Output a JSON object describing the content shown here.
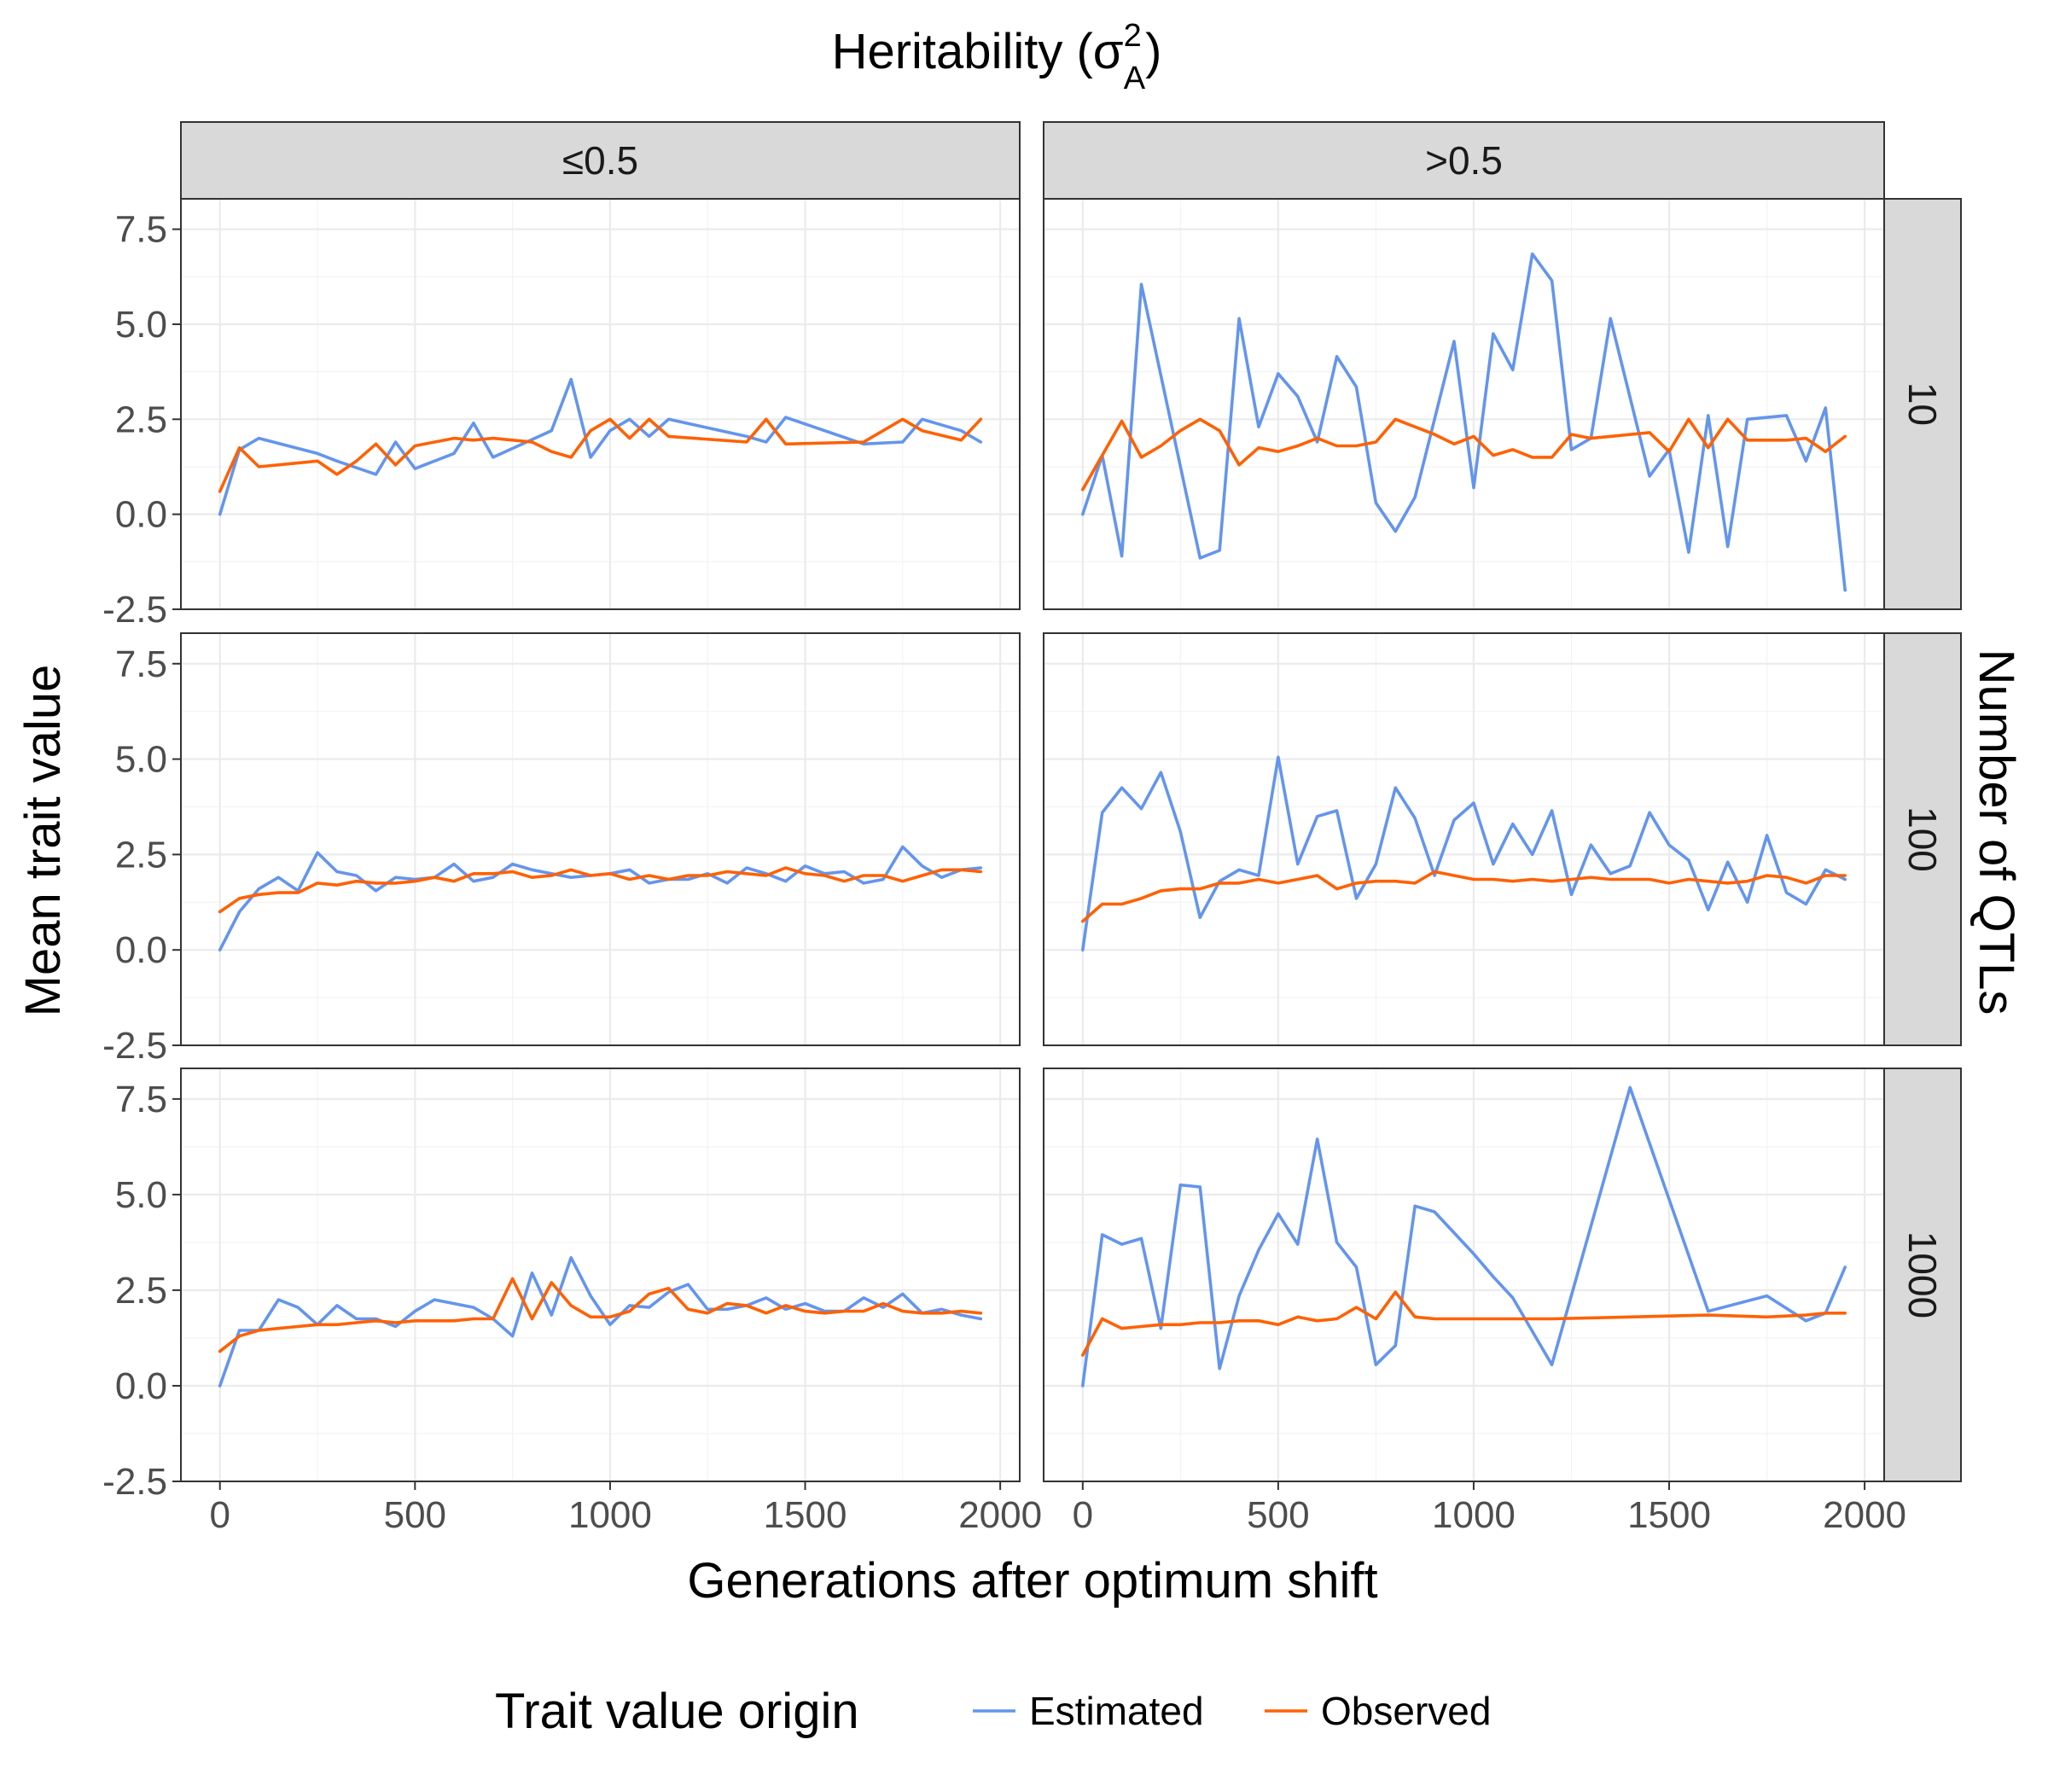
{
  "chart_data": {
    "type": "line",
    "title": "Heritability (σ²A)",
    "title_parts": {
      "base": "Heritability (σ",
      "sup": "2",
      "sub": "A",
      "close": ")"
    },
    "xlabel": "Generations after optimum shift",
    "ylabel": "Mean trait value",
    "facet_row_label": "Number of QTLs",
    "facet_cols": [
      "≤0.5",
      ">0.5"
    ],
    "facet_rows": [
      "10",
      "100",
      "1000"
    ],
    "xlim": [
      -100,
      2050
    ],
    "ylim": [
      -2.5,
      8.3
    ],
    "xticks": [
      0,
      500,
      1000,
      1500,
      2000
    ],
    "yticks": [
      -2.5,
      0.0,
      2.5,
      5.0,
      7.5
    ],
    "xtick_labels": [
      "0",
      "500",
      "1000",
      "1500",
      "2000"
    ],
    "ytick_labels": [
      "-2.5",
      "0.0",
      "2.5",
      "5.0",
      "7.5"
    ],
    "grid": true,
    "legend": {
      "title": "Trait value origin",
      "position": "bottom",
      "entries": [
        {
          "name": "Estimated",
          "color": "#6495ED"
        },
        {
          "name": "Observed",
          "color": "#FF6103"
        }
      ]
    },
    "panels": [
      {
        "col": "≤0.5",
        "row": "10",
        "series": [
          {
            "name": "Estimated",
            "x": [
              0,
              50,
              100,
              250,
              300,
              400,
              450,
              500,
              600,
              650,
              700,
              850,
              900,
              950,
              1000,
              1050,
              1100,
              1150,
              1350,
              1400,
              1450,
              1650,
              1750,
              1800,
              1900,
              1950
            ],
            "y": [
              0.0,
              1.7,
              2.0,
              1.6,
              1.4,
              1.05,
              1.9,
              1.2,
              1.6,
              2.4,
              1.5,
              2.2,
              3.55,
              1.5,
              2.2,
              2.5,
              2.05,
              2.5,
              2.05,
              1.9,
              2.55,
              1.85,
              1.9,
              2.5,
              2.2,
              1.9
            ]
          },
          {
            "name": "Observed",
            "x": [
              0,
              50,
              100,
              250,
              300,
              350,
              400,
              450,
              500,
              600,
              650,
              700,
              800,
              850,
              900,
              950,
              1000,
              1050,
              1100,
              1150,
              1350,
              1400,
              1450,
              1650,
              1750,
              1800,
              1900,
              1950
            ],
            "y": [
              0.6,
              1.75,
              1.25,
              1.4,
              1.05,
              1.4,
              1.85,
              1.3,
              1.8,
              2.0,
              1.95,
              2.0,
              1.9,
              1.65,
              1.5,
              2.2,
              2.5,
              2.0,
              2.5,
              2.05,
              1.9,
              2.5,
              1.85,
              1.9,
              2.5,
              2.2,
              1.95,
              2.5
            ]
          }
        ]
      },
      {
        "col": ">0.5",
        "row": "10",
        "series": [
          {
            "name": "Estimated",
            "x": [
              0,
              50,
              100,
              150,
              300,
              350,
              400,
              450,
              500,
              550,
              600,
              650,
              700,
              750,
              800,
              850,
              950,
              1000,
              1050,
              1100,
              1150,
              1200,
              1250,
              1300,
              1350,
              1450,
              1500,
              1550,
              1600,
              1650,
              1700,
              1800,
              1850,
              1900,
              1950
            ],
            "y": [
              0.0,
              1.55,
              -1.1,
              6.05,
              -1.15,
              -0.95,
              5.15,
              2.3,
              3.7,
              3.1,
              1.9,
              4.15,
              3.35,
              0.3,
              -0.45,
              0.45,
              4.55,
              0.7,
              4.75,
              3.8,
              6.85,
              6.15,
              1.7,
              2.0,
              5.15,
              1.0,
              1.7,
              -1.0,
              2.6,
              -0.85,
              2.5,
              2.6,
              1.4,
              2.8,
              -2.0
            ]
          },
          {
            "name": "Observed",
            "x": [
              0,
              100,
              150,
              200,
              250,
              300,
              350,
              400,
              450,
              500,
              550,
              600,
              650,
              700,
              750,
              800,
              850,
              900,
              950,
              1000,
              1050,
              1100,
              1150,
              1200,
              1250,
              1300,
              1350,
              1450,
              1500,
              1550,
              1600,
              1650,
              1700,
              1800,
              1850,
              1900,
              1950
            ],
            "y": [
              0.65,
              2.45,
              1.5,
              1.8,
              2.2,
              2.5,
              2.2,
              1.3,
              1.75,
              1.65,
              1.8,
              2.0,
              1.8,
              1.8,
              1.9,
              2.5,
              2.3,
              2.1,
              1.85,
              2.05,
              1.55,
              1.7,
              1.5,
              1.5,
              2.1,
              2.0,
              2.05,
              2.15,
              1.65,
              2.5,
              1.75,
              2.5,
              1.95,
              1.95,
              2.0,
              1.65,
              2.05
            ]
          }
        ]
      },
      {
        "col": "≤0.5",
        "row": "100",
        "series": [
          {
            "name": "Estimated",
            "x": [
              0,
              50,
              100,
              150,
              200,
              250,
              300,
              350,
              400,
              450,
              500,
              550,
              600,
              650,
              700,
              750,
              800,
              850,
              900,
              950,
              1000,
              1050,
              1100,
              1150,
              1200,
              1250,
              1300,
              1350,
              1400,
              1450,
              1500,
              1550,
              1600,
              1650,
              1700,
              1750,
              1800,
              1850,
              1900,
              1950
            ],
            "y": [
              0.0,
              1.0,
              1.6,
              1.9,
              1.55,
              2.55,
              2.05,
              1.95,
              1.55,
              1.9,
              1.85,
              1.9,
              2.25,
              1.8,
              1.9,
              2.25,
              2.1,
              2.0,
              1.9,
              1.95,
              2.0,
              2.1,
              1.75,
              1.85,
              1.85,
              2.0,
              1.75,
              2.15,
              2.0,
              1.8,
              2.2,
              2.0,
              2.05,
              1.75,
              1.85,
              2.7,
              2.2,
              1.9,
              2.1,
              2.15
            ]
          },
          {
            "name": "Observed",
            "x": [
              0,
              50,
              100,
              150,
              200,
              250,
              300,
              350,
              400,
              450,
              500,
              550,
              600,
              650,
              700,
              750,
              800,
              850,
              900,
              950,
              1000,
              1050,
              1100,
              1150,
              1200,
              1250,
              1300,
              1350,
              1400,
              1450,
              1500,
              1550,
              1600,
              1650,
              1700,
              1750,
              1800,
              1850,
              1900,
              1950
            ],
            "y": [
              1.0,
              1.35,
              1.45,
              1.5,
              1.5,
              1.75,
              1.7,
              1.8,
              1.75,
              1.75,
              1.8,
              1.9,
              1.8,
              2.0,
              2.0,
              2.05,
              1.9,
              1.95,
              2.1,
              1.95,
              2.0,
              1.85,
              1.95,
              1.85,
              1.95,
              1.95,
              2.05,
              2.0,
              1.95,
              2.15,
              2.0,
              1.95,
              1.8,
              1.95,
              1.95,
              1.8,
              1.95,
              2.1,
              2.1,
              2.05
            ]
          }
        ]
      },
      {
        "col": ">0.5",
        "row": "100",
        "series": [
          {
            "name": "Estimated",
            "x": [
              0,
              50,
              100,
              150,
              200,
              250,
              300,
              350,
              400,
              450,
              500,
              550,
              600,
              650,
              700,
              750,
              800,
              850,
              900,
              950,
              1000,
              1050,
              1100,
              1150,
              1200,
              1250,
              1300,
              1350,
              1400,
              1450,
              1500,
              1550,
              1600,
              1650,
              1700,
              1750,
              1800,
              1850,
              1900,
              1950
            ],
            "y": [
              0.0,
              3.6,
              4.25,
              3.7,
              4.65,
              3.1,
              0.85,
              1.8,
              2.1,
              1.95,
              5.05,
              2.25,
              3.5,
              3.65,
              1.35,
              2.25,
              4.25,
              3.45,
              1.95,
              3.4,
              3.85,
              2.25,
              3.3,
              2.5,
              3.65,
              1.45,
              2.75,
              2.0,
              2.2,
              3.6,
              2.75,
              2.35,
              1.05,
              2.3,
              1.25,
              3.0,
              1.5,
              1.2,
              2.1,
              1.85
            ]
          },
          {
            "name": "Observed",
            "x": [
              0,
              50,
              100,
              150,
              200,
              250,
              300,
              350,
              400,
              450,
              500,
              550,
              600,
              650,
              700,
              750,
              800,
              850,
              900,
              950,
              1000,
              1050,
              1100,
              1150,
              1200,
              1250,
              1300,
              1350,
              1400,
              1450,
              1500,
              1550,
              1600,
              1650,
              1700,
              1750,
              1800,
              1850,
              1900,
              1950
            ],
            "y": [
              0.75,
              1.2,
              1.2,
              1.35,
              1.55,
              1.6,
              1.6,
              1.75,
              1.75,
              1.85,
              1.75,
              1.85,
              1.95,
              1.6,
              1.75,
              1.8,
              1.8,
              1.75,
              2.05,
              1.95,
              1.85,
              1.85,
              1.8,
              1.85,
              1.8,
              1.85,
              1.9,
              1.85,
              1.85,
              1.85,
              1.75,
              1.85,
              1.8,
              1.75,
              1.8,
              1.95,
              1.9,
              1.75,
              1.95,
              1.95
            ]
          }
        ]
      },
      {
        "col": "≤0.5",
        "row": "1000",
        "series": [
          {
            "name": "Estimated",
            "x": [
              0,
              50,
              100,
              150,
              200,
              250,
              300,
              350,
              400,
              450,
              500,
              550,
              600,
              650,
              700,
              750,
              800,
              850,
              900,
              950,
              1000,
              1050,
              1100,
              1150,
              1200,
              1250,
              1300,
              1350,
              1400,
              1450,
              1500,
              1550,
              1600,
              1650,
              1700,
              1750,
              1800,
              1850,
              1900,
              1950
            ],
            "y": [
              0.0,
              1.45,
              1.45,
              2.25,
              2.05,
              1.6,
              2.1,
              1.75,
              1.75,
              1.55,
              1.95,
              2.25,
              2.15,
              2.05,
              1.75,
              1.3,
              2.95,
              1.85,
              3.35,
              2.35,
              1.6,
              2.1,
              2.05,
              2.45,
              2.65,
              2.0,
              2.0,
              2.1,
              2.3,
              2.0,
              2.15,
              1.95,
              1.95,
              2.3,
              2.05,
              2.4,
              1.9,
              2.0,
              1.85,
              1.75
            ]
          },
          {
            "name": "Observed",
            "x": [
              0,
              50,
              100,
              150,
              200,
              250,
              300,
              350,
              400,
              450,
              500,
              550,
              600,
              650,
              700,
              750,
              800,
              850,
              900,
              950,
              1000,
              1050,
              1100,
              1150,
              1200,
              1250,
              1300,
              1350,
              1400,
              1450,
              1500,
              1550,
              1600,
              1650,
              1700,
              1750,
              1800,
              1850,
              1900,
              1950
            ],
            "y": [
              0.9,
              1.3,
              1.45,
              1.5,
              1.55,
              1.6,
              1.6,
              1.65,
              1.7,
              1.65,
              1.7,
              1.7,
              1.7,
              1.75,
              1.75,
              2.8,
              1.75,
              2.7,
              2.1,
              1.8,
              1.8,
              1.95,
              2.4,
              2.55,
              2.0,
              1.9,
              2.15,
              2.1,
              1.9,
              2.1,
              1.95,
              1.9,
              1.95,
              1.95,
              2.15,
              1.95,
              1.9,
              1.9,
              1.95,
              1.9
            ]
          }
        ]
      },
      {
        "col": ">0.5",
        "row": "1000",
        "series": [
          {
            "name": "Estimated",
            "x": [
              0,
              50,
              100,
              150,
              200,
              250,
              300,
              350,
              400,
              450,
              500,
              550,
              600,
              650,
              700,
              750,
              800,
              850,
              900,
              1000,
              1050,
              1100,
              1200,
              1400,
              1600,
              1750,
              1850,
              1900,
              1950
            ],
            "y": [
              0.0,
              3.95,
              3.7,
              3.85,
              1.5,
              5.25,
              5.2,
              0.45,
              2.35,
              3.55,
              4.5,
              3.7,
              6.45,
              3.75,
              3.1,
              0.55,
              1.05,
              4.7,
              4.55,
              3.45,
              2.85,
              2.3,
              0.55,
              7.8,
              1.95,
              2.35,
              1.7,
              1.9,
              3.1
            ]
          },
          {
            "name": "Observed",
            "x": [
              0,
              50,
              100,
              150,
              200,
              250,
              300,
              350,
              400,
              450,
              500,
              550,
              600,
              650,
              700,
              750,
              800,
              850,
              900,
              1000,
              1050,
              1100,
              1200,
              1400,
              1600,
              1750,
              1850,
              1900,
              1950
            ],
            "y": [
              0.8,
              1.75,
              1.5,
              1.55,
              1.6,
              1.6,
              1.65,
              1.65,
              1.7,
              1.7,
              1.6,
              1.8,
              1.7,
              1.75,
              2.05,
              1.75,
              2.45,
              1.8,
              1.75,
              1.75,
              1.75,
              1.75,
              1.75,
              1.8,
              1.85,
              1.8,
              1.85,
              1.9,
              1.9
            ]
          }
        ]
      }
    ]
  }
}
